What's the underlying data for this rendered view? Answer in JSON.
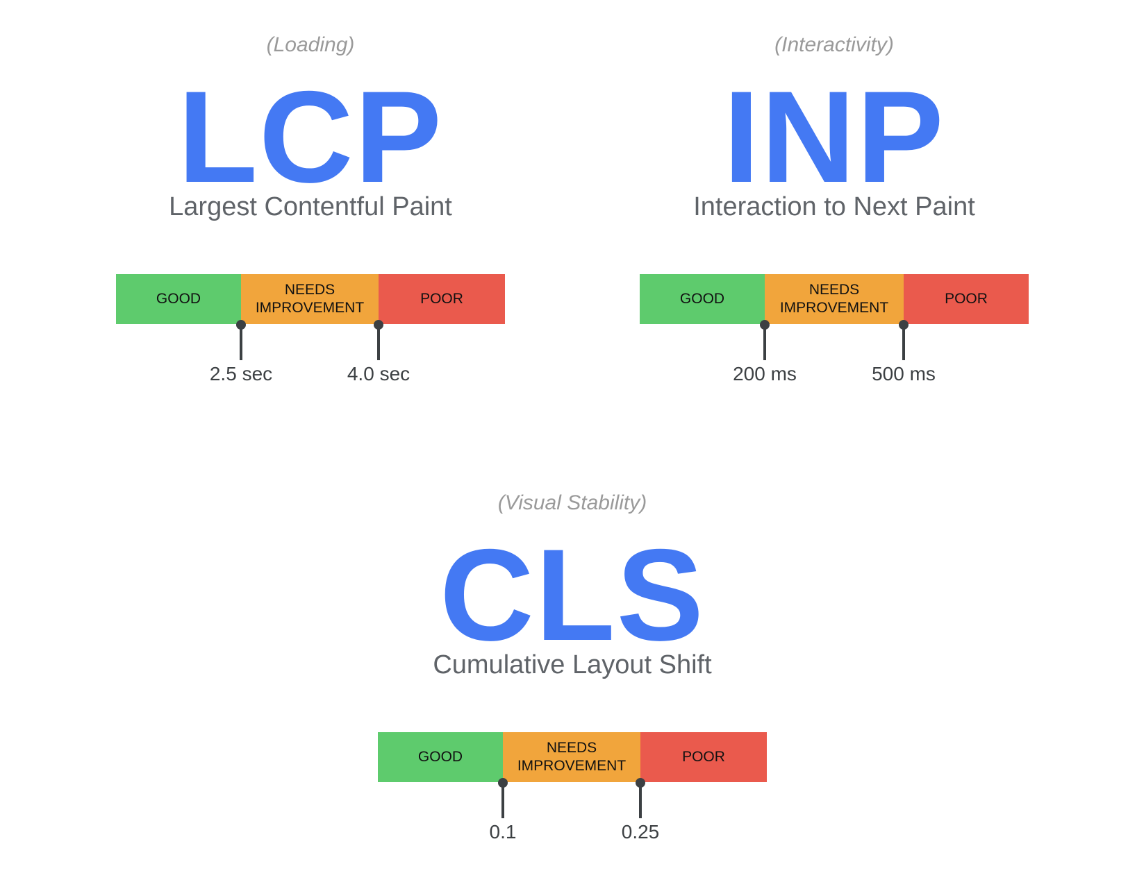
{
  "colors": {
    "good": "#5ecb6d",
    "needs_improvement": "#f1a53c",
    "poor": "#ea5a4d",
    "acronym": "#4479f3"
  },
  "metrics": [
    {
      "category": "(Loading)",
      "acronym": "LCP",
      "name": "Largest Contentful Paint",
      "segments": {
        "good": "GOOD",
        "needs_line1": "NEEDS",
        "needs_line2": "IMPROVEMENT",
        "poor": "POOR"
      },
      "thresholds": [
        "2.5 sec",
        "4.0 sec"
      ]
    },
    {
      "category": "(Interactivity)",
      "acronym": "INP",
      "name": "Interaction to Next Paint",
      "segments": {
        "good": "GOOD",
        "needs_line1": "NEEDS",
        "needs_line2": "IMPROVEMENT",
        "poor": "POOR"
      },
      "thresholds": [
        "200 ms",
        "500 ms"
      ]
    },
    {
      "category": "(Visual Stability)",
      "acronym": "CLS",
      "name": "Cumulative Layout Shift",
      "segments": {
        "good": "GOOD",
        "needs_line1": "NEEDS",
        "needs_line2": "IMPROVEMENT",
        "poor": "POOR"
      },
      "thresholds": [
        "0.1",
        "0.25"
      ]
    }
  ]
}
